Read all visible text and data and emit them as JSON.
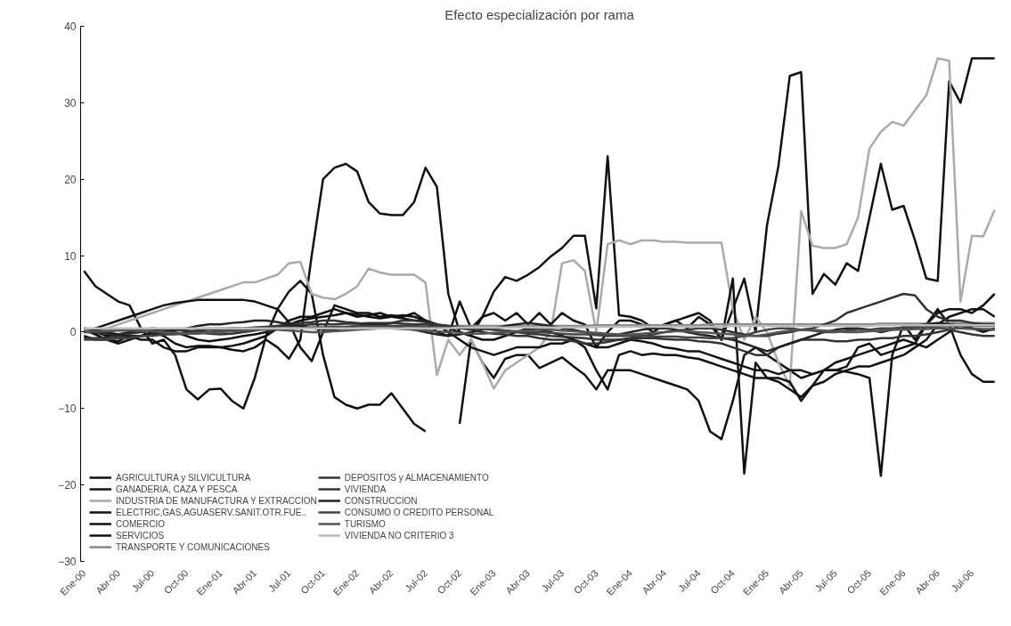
{
  "chart_data": {
    "type": "line",
    "title": "Efecto especialización por rama",
    "categories": [
      "Ene-00",
      null,
      null,
      "Abr-00",
      null,
      null,
      "Jul-00",
      null,
      null,
      "Oct-00",
      null,
      null,
      "Ene-01",
      null,
      null,
      "Abr-01",
      null,
      null,
      "Jul-01",
      null,
      null,
      "Oct-01",
      null,
      null,
      "Ene-02",
      null,
      null,
      "Abr-02",
      null,
      null,
      "Jul-02",
      null,
      null,
      "Oct-02",
      null,
      null,
      "Ene-03",
      null,
      null,
      "Abr-03",
      null,
      null,
      "Jul-03",
      null,
      null,
      "Oct-03",
      null,
      null,
      "Ene-04",
      null,
      null,
      "Abr-04",
      null,
      null,
      "Jul-04",
      null,
      null,
      "Oct-04",
      null,
      null,
      "Ene-05",
      null,
      null,
      "Abr-05",
      null,
      null,
      "Jul-05",
      null,
      null,
      "Oct-05",
      null,
      null,
      "Ene-06",
      null,
      null,
      "Abr-06",
      null,
      null,
      "Jul-06",
      null,
      null
    ],
    "ylim": [
      -30,
      40
    ],
    "yticks": [
      -30,
      -20,
      -10,
      0,
      10,
      20,
      30,
      40
    ],
    "legend": "bottom left",
    "series": [
      {
        "name": "AGRICULTURA y SILVICULTURA",
        "color": "#111111",
        "values": [
          8,
          6,
          5,
          4,
          3.5,
          0.5,
          -1.5,
          -1,
          -3,
          -7.5,
          -8.8,
          -7.5,
          -7.4,
          -9,
          -10,
          -6,
          -0.5,
          3,
          5.3,
          6.7,
          5,
          -3,
          -8.5,
          -9.5,
          -10,
          -9.5,
          -9.5,
          -8,
          -10,
          -12,
          -13,
          null,
          null,
          -12,
          -1,
          -4,
          -6,
          -3.5,
          -3,
          -3,
          -4.7,
          -4,
          -3.3,
          -4.5,
          -5.6,
          -7.5,
          -5,
          -5,
          -5,
          -5.5,
          -6,
          -6.5,
          -7,
          -7.5,
          -9,
          -13,
          -14,
          -9,
          -3,
          -2,
          -3,
          -4,
          -5,
          -6,
          -5.5,
          -5,
          -4,
          -3.5,
          -3,
          -2.5,
          -2,
          -1.5,
          -1,
          -1.5,
          -2,
          -1,
          0,
          1,
          0.5,
          0,
          0.5
        ]
      },
      {
        "name": "GANADERIA, CAZA Y PESCA",
        "color": "#111111",
        "values": [
          0.3,
          -0.3,
          -1,
          -1.2,
          -0.5,
          -1,
          -1,
          -2,
          -2.5,
          -2.5,
          -2,
          -2,
          -2,
          -2.3,
          -2.5,
          -2,
          -1,
          -2,
          -3.5,
          -1,
          10,
          20,
          21.5,
          22,
          21,
          17,
          15.5,
          15.3,
          15.3,
          17,
          21.5,
          19,
          5,
          0,
          -0.5,
          2,
          5.3,
          7.2,
          6.7,
          7.5,
          8.5,
          9.9,
          11,
          12.6,
          12.6,
          3.1,
          23,
          2.2,
          2,
          1.5,
          0.5,
          1,
          1.5,
          2,
          2.5,
          1.5,
          -1,
          3,
          7,
          0,
          14,
          21.7,
          33.5,
          34,
          5,
          7.6,
          6.2,
          9,
          8,
          15,
          22,
          16,
          16.5,
          12,
          7,
          6.7,
          32.8,
          30,
          35.8,
          35.8,
          35.8
        ]
      },
      {
        "name": "INDUSTRIA DE MANUFACTURA Y EXTRACCION",
        "color": "#aaaaaa",
        "values": [
          0,
          0.3,
          0.5,
          1,
          1.5,
          2,
          2.5,
          3,
          3.5,
          4,
          4.5,
          5,
          5.5,
          6,
          6.5,
          6.5,
          7,
          7.5,
          9,
          9.2,
          5,
          4.5,
          4.3,
          5,
          6,
          8.3,
          7.8,
          7.5,
          7.5,
          7.5,
          6.5,
          -5.6,
          -1,
          -3,
          -1,
          -4,
          -7.4,
          -5,
          -4,
          -3,
          -2,
          0,
          9,
          9.4,
          8,
          0,
          11.5,
          12,
          11.5,
          12,
          12,
          11.8,
          11.8,
          11.7,
          11.7,
          11.7,
          11.7,
          3,
          -1,
          2,
          0,
          -4,
          -7,
          15.8,
          11.3,
          11,
          11,
          11.5,
          15,
          24,
          26.2,
          27.5,
          27,
          29,
          31,
          35.8,
          35.5,
          4,
          12.6,
          12.5,
          16
        ]
      },
      {
        "name": "ELECTRIC,GAS,AGUASERV.SANIT.OTR.FUE..",
        "color": "#111111",
        "values": [
          0,
          0.5,
          1,
          1.5,
          2,
          2.5,
          3,
          3.5,
          3.8,
          4,
          4.2,
          4.2,
          4.2,
          4.2,
          4.2,
          4,
          3.5,
          3,
          1.3,
          -2,
          -3.8,
          0,
          3.5,
          3,
          2.5,
          2.5,
          2,
          2.2,
          2,
          2.5,
          1.5,
          0,
          -0.5,
          4,
          0.5,
          2,
          2.5,
          1.5,
          2.5,
          1,
          2.5,
          1,
          2.5,
          1.5,
          1,
          -2,
          0,
          1.5,
          1.5,
          1,
          0,
          1,
          1.5,
          0.5,
          2,
          1,
          -1,
          7,
          -18.5,
          -4,
          -6,
          -6,
          -6.5,
          -9,
          -7,
          -5,
          -5,
          -4.5,
          -2,
          -1.5,
          -3,
          -2.5,
          -2,
          -1.5,
          1,
          2.5,
          3,
          3,
          2.5,
          3.5,
          5
        ]
      },
      {
        "name": "COMERCIO",
        "color": "#111111",
        "values": [
          0.5,
          0,
          -0.5,
          -0.3,
          0,
          0.3,
          0.5,
          0.3,
          0,
          -0.5,
          -1,
          -1.2,
          -1,
          -0.8,
          -0.5,
          -0.3,
          0,
          0.5,
          1,
          1.5,
          1.8,
          2,
          2.2,
          2.5,
          2.3,
          2,
          1.8,
          2,
          2.2,
          2,
          1.5,
          1,
          0.5,
          0,
          -0.5,
          -1,
          -1,
          -0.5,
          0,
          0.5,
          0.3,
          0,
          -0.5,
          -1,
          -1.5,
          -2,
          -2,
          -1.5,
          -1,
          -1.2,
          -1.5,
          -2,
          -2.2,
          -2.5,
          -2.5,
          -3,
          -3.5,
          -4,
          -4.5,
          -5,
          -5,
          -5.5,
          -5,
          -5,
          -5.5,
          -5,
          -5,
          -5.2,
          -5.5,
          -6,
          -18.8,
          -3,
          1,
          -1,
          1,
          3,
          1,
          -3,
          -5.5,
          -6.5,
          -6.5
        ]
      },
      {
        "name": "SERVICIOS",
        "color": "#111111",
        "values": [
          -0.5,
          -1,
          -1,
          -1.5,
          -1,
          -0.5,
          0,
          -0.5,
          -1.5,
          -2,
          -1.8,
          -1.8,
          -2,
          -1.8,
          -1.5,
          -1,
          -0.5,
          0.5,
          1.5,
          2,
          2,
          2.5,
          3,
          2.5,
          2,
          2.2,
          2.5,
          2,
          1.8,
          1.5,
          1.5,
          1,
          0,
          -1,
          -2,
          -2.5,
          -3,
          -2.5,
          -2,
          -2,
          -2,
          -1.5,
          -1.5,
          -1,
          -2,
          -5,
          -7.5,
          -3,
          -2.5,
          -3,
          -2.8,
          -3,
          -3,
          -3.3,
          -3.5,
          -4,
          -4.5,
          -5,
          -5.5,
          -6,
          -6,
          -6.5,
          -7.5,
          -8.5,
          -7,
          -6.5,
          -5.5,
          -5,
          -4.5,
          -4.5,
          -4,
          -3.5,
          -3,
          -2,
          -1,
          1,
          2,
          2.5,
          3,
          3,
          2
        ]
      },
      {
        "name": "TRANSPORTE Y COMUNICACIONES",
        "color": "#888888",
        "values": [
          0.2,
          0.2,
          0.3,
          0.3,
          0.3,
          0.3,
          0.4,
          0.4,
          0.4,
          0.4,
          0.4,
          0.5,
          0.5,
          0.5,
          0.5,
          0.5,
          0.5,
          0.5,
          0.6,
          0.6,
          0.6,
          0.6,
          0.6,
          0.6,
          0.7,
          0.7,
          0.7,
          0.7,
          0.7,
          0.7,
          0.7,
          0.7,
          0.7,
          0.8,
          0.8,
          0.8,
          0.8,
          0.8,
          0.8,
          0.8,
          0.8,
          0.8,
          0.8,
          0.8,
          0.8,
          0.9,
          0.9,
          0.9,
          0.9,
          0.9,
          0.9,
          0.9,
          0.9,
          0.9,
          0.9,
          1,
          1,
          1,
          1,
          1,
          1,
          1,
          1,
          1,
          1,
          1,
          1,
          1,
          1,
          1,
          1.1,
          1.1,
          1.1,
          1.1,
          1.1,
          1.1,
          1.2,
          1.2,
          1.2,
          1.2,
          1.2
        ]
      },
      {
        "name": "DEPOSITOS y ALMACENAMIENTO",
        "color": "#333333",
        "values": [
          0,
          0,
          -0.2,
          -0.3,
          -0.2,
          0,
          0.2,
          0.3,
          0.3,
          0.2,
          0,
          -0.2,
          -0.3,
          -0.2,
          0,
          0.2,
          0.5,
          0.8,
          1,
          1.2,
          1.3,
          1.5,
          1.5,
          1.3,
          1.2,
          1,
          1,
          1.2,
          1.5,
          1.5,
          1.3,
          1,
          0.8,
          0.5,
          0.3,
          0,
          -0.2,
          -0.3,
          -0.5,
          -0.5,
          -0.8,
          -1,
          -1,
          -1.2,
          -1.5,
          -1.5,
          -1.3,
          -1,
          -0.8,
          -0.5,
          -0.3,
          0,
          0.2,
          0.3,
          0.5,
          0.5,
          0.3,
          0,
          -0.3,
          -0.5,
          -0.5,
          -0.2,
          0,
          0.3,
          0.5,
          1,
          1.5,
          2.5,
          3,
          3.5,
          4,
          4.5,
          5,
          4.8,
          3,
          2,
          1.5,
          1.5,
          1.2,
          1,
          1
        ]
      },
      {
        "name": "VIVIENDA",
        "color": "#333333",
        "values": [
          -0.8,
          -0.8,
          -0.7,
          -0.6,
          -0.5,
          -0.5,
          -0.4,
          -0.3,
          -0.2,
          0,
          0.2,
          0.3,
          0.4,
          0.5,
          0.5,
          0.6,
          0.7,
          0.8,
          0.8,
          0.9,
          1,
          1,
          1,
          1.1,
          1.1,
          1.2,
          1.2,
          1.2,
          1.1,
          1,
          1,
          0.9,
          0.8,
          0.7,
          0.6,
          0.5,
          0.3,
          0.2,
          0,
          -0.2,
          -0.3,
          -0.5,
          -0.6,
          -0.7,
          -0.8,
          -1,
          -1,
          -1,
          -0.9,
          -0.8,
          -0.8,
          -0.9,
          -1,
          -1,
          -1.2,
          -1.3,
          -1.5,
          -2,
          -2.5,
          -3,
          -3,
          -2,
          -1.5,
          -1,
          -1,
          -1,
          -1.2,
          -1.2,
          -1,
          -1,
          -0.8,
          -0.8,
          -0.5,
          -0.5,
          -0.3,
          0,
          0.3,
          0,
          -0.3,
          -0.5,
          -0.5
        ]
      },
      {
        "name": "CONSTRUCCION",
        "color": "#222222",
        "values": [
          0.5,
          0.3,
          0,
          -0.3,
          -0.5,
          -0.5,
          -0.3,
          0,
          0.3,
          0.5,
          0.8,
          1,
          1,
          1.2,
          1.3,
          1.5,
          1.5,
          1.3,
          1,
          0.8,
          0.5,
          0.3,
          0.3,
          0.5,
          0.8,
          1,
          1,
          0.8,
          0.5,
          0.3,
          0,
          -0.3,
          -0.5,
          -0.3,
          0,
          0.3,
          0.5,
          0.8,
          1,
          1.2,
          1,
          0.8,
          0.5,
          0.3,
          0,
          -0.3,
          -0.5,
          -0.3,
          0,
          0.3,
          0.5,
          0.5,
          0.3,
          0,
          -0.3,
          -0.5,
          -0.8,
          -1,
          -1.5,
          -2,
          -2.5,
          -2,
          -1.5,
          -1,
          -0.5,
          0,
          0.3,
          0.5,
          0.5,
          0.3,
          0,
          0.3,
          0.5,
          0.8,
          1,
          1.2,
          1,
          0.8,
          0.5,
          0.3,
          0.3
        ]
      },
      {
        "name": "CONSUMO O CREDITO PERSONAL",
        "color": "#444444",
        "values": [
          -1,
          -1,
          -1,
          -0.8,
          -0.8,
          -0.5,
          -0.5,
          -0.3,
          -0.3,
          -0.2,
          0,
          0,
          0.2,
          0.2,
          0.3,
          0.3,
          0.5,
          0.5,
          0.5,
          0.5,
          0.6,
          0.6,
          0.7,
          0.7,
          0.8,
          0.8,
          0.8,
          0.8,
          0.8,
          0.8,
          0.7,
          0.7,
          0.6,
          0.5,
          0.5,
          0.4,
          0.3,
          0.2,
          0.1,
          0,
          0,
          -0.1,
          -0.2,
          -0.3,
          -0.3,
          -0.4,
          -0.5,
          -0.5,
          -0.5,
          -0.5,
          -0.6,
          -0.6,
          -0.6,
          -0.7,
          -0.7,
          -0.8,
          -0.8,
          -0.8,
          -0.5,
          0,
          0.3,
          0.5,
          0.5,
          0.3,
          0.2,
          0,
          0,
          0.2,
          0.3,
          0.3,
          0.5,
          0.5,
          0.6,
          0.6,
          0.7,
          0.7,
          0.8,
          0.8,
          0.8,
          0.8,
          0.8
        ]
      },
      {
        "name": "TURISMO",
        "color": "#555555",
        "values": [
          0,
          0.1,
          0.1,
          0.2,
          0.2,
          0.2,
          0.1,
          0,
          -0.1,
          -0.2,
          -0.2,
          -0.1,
          0,
          0.1,
          0.2,
          0.3,
          0.3,
          0.3,
          0.2,
          0.1,
          0,
          0,
          0.1,
          0.2,
          0.3,
          0.4,
          0.5,
          0.5,
          0.4,
          0.3,
          0.2,
          0.1,
          0,
          -0.1,
          -0.2,
          -0.2,
          -0.1,
          0,
          0.1,
          0.2,
          0.3,
          0.3,
          0.2,
          0.1,
          0,
          -0.1,
          -0.2,
          -0.3,
          -0.3,
          -0.2,
          -0.1,
          0,
          0.1,
          0.1,
          0,
          -0.1,
          -0.2,
          -0.3,
          -0.5,
          -0.5,
          -0.3,
          0,
          0.2,
          0.3,
          0.3,
          0.2,
          0.1,
          0,
          0,
          0.1,
          0.2,
          0.3,
          0.3,
          0.4,
          0.4,
          0.5,
          0.5,
          0.5,
          0.4,
          0.4,
          0.4
        ]
      },
      {
        "name": "VIVIENDA NO CRITERIO 3",
        "color": "#bbbbbb",
        "values": [
          0.5,
          0.5,
          0.5,
          0.5,
          0.5,
          0.5,
          0.5,
          0.5,
          0.5,
          0.5,
          0.5,
          0.5,
          0.5,
          0.5,
          0.5,
          0.5,
          0.5,
          0.5,
          0.5,
          0.5,
          0.5,
          0.5,
          0.5,
          0.5,
          0.5,
          0.5,
          0.5,
          0.5,
          0.5,
          0.5,
          0.5,
          0.5,
          0.5,
          0.6,
          0.6,
          0.6,
          0.6,
          0.6,
          0.6,
          0.6,
          0.6,
          0.6,
          0.6,
          0.6,
          0.6,
          0.7,
          0.7,
          0.7,
          0.7,
          0.7,
          0.7,
          0.7,
          0.7,
          0.7,
          0.7,
          0.7,
          0.7,
          0.8,
          0.8,
          0.8,
          0.8,
          0.8,
          0.8,
          0.8,
          0.8,
          0.8,
          0.8,
          0.8,
          0.8,
          0.8,
          0.9,
          0.9,
          0.9,
          0.9,
          0.9,
          0.9,
          0.9,
          0.9,
          0.9,
          0.9,
          0.9
        ]
      }
    ]
  }
}
